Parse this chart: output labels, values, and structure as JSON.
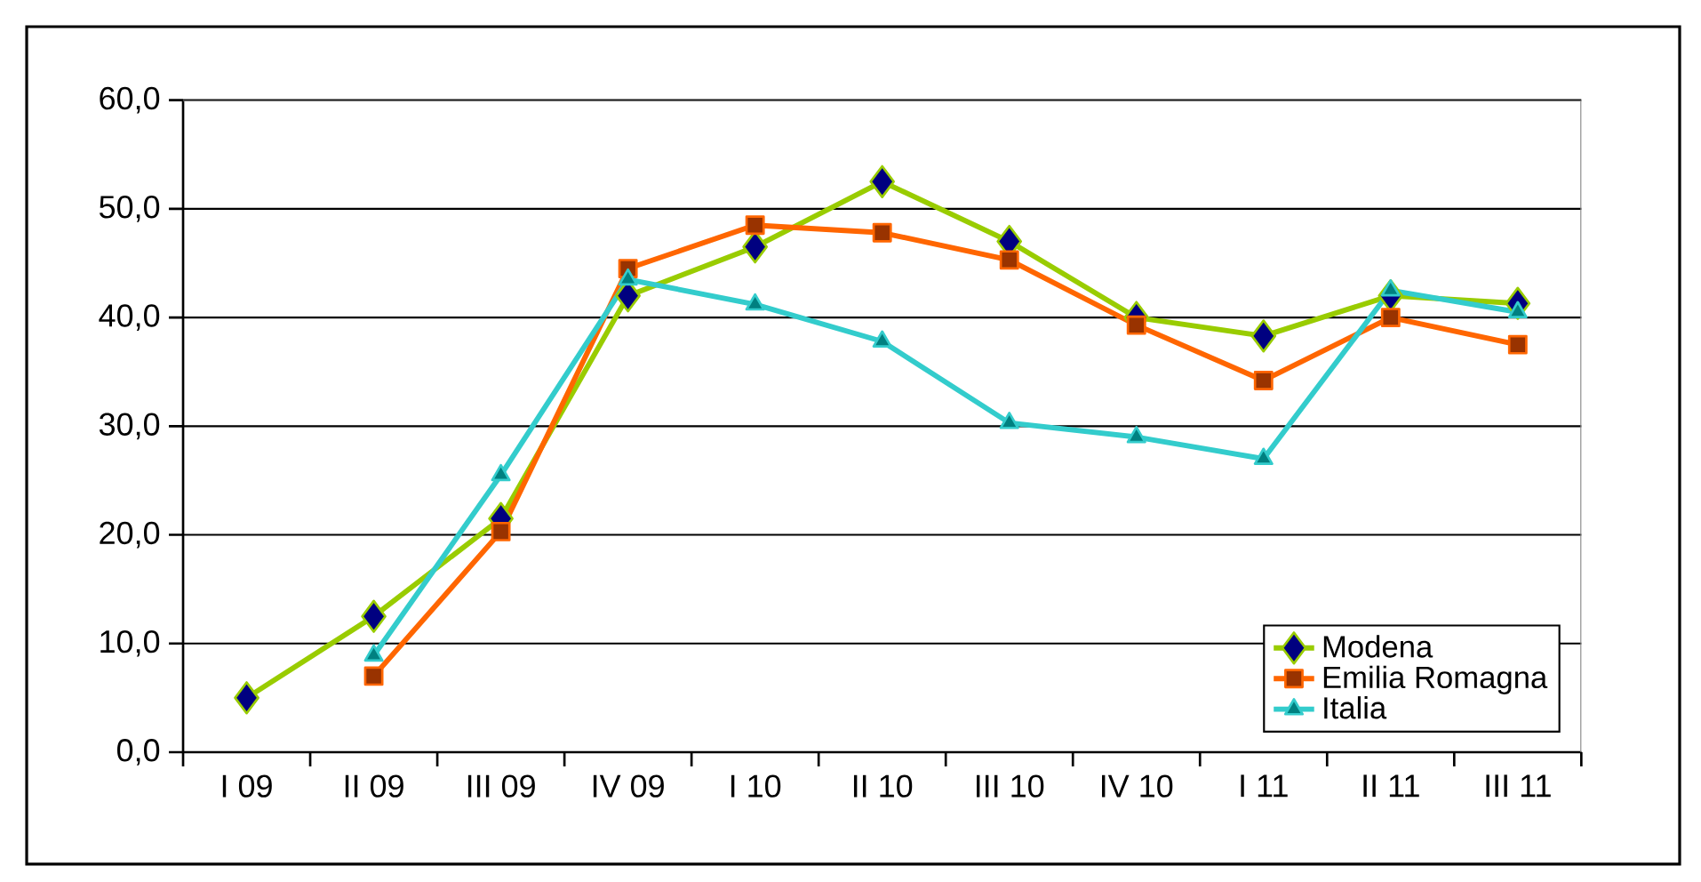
{
  "chart_data": {
    "type": "line",
    "categories": [
      "I 09",
      "II 09",
      "III 09",
      "IV 09",
      "I 10",
      "II 10",
      "III 10",
      "IV 10",
      "I 11",
      "II 11",
      "III 11"
    ],
    "series": [
      {
        "name": "Modena",
        "color": "#99cc00",
        "marker": "diamond",
        "values": [
          5.0,
          12.5,
          21.5,
          42.0,
          46.5,
          52.5,
          47.0,
          40.0,
          38.3,
          42.0,
          41.3
        ]
      },
      {
        "name": "Emilia Romagna",
        "color": "#ff6600",
        "marker": "square",
        "values": [
          null,
          7.0,
          20.3,
          44.5,
          48.5,
          47.8,
          45.3,
          39.3,
          34.2,
          40.0,
          37.5
        ]
      },
      {
        "name": "Italia",
        "color": "#33cccc",
        "marker": "triangle",
        "values": [
          null,
          8.9,
          25.5,
          43.5,
          41.2,
          37.8,
          30.3,
          29.0,
          27.0,
          42.5,
          40.5
        ]
      }
    ],
    "ylim": [
      0,
      60
    ],
    "yticks": [
      {
        "value": 0,
        "label": "0,0"
      },
      {
        "value": 10,
        "label": "10,0"
      },
      {
        "value": 20,
        "label": "20,0"
      },
      {
        "value": 30,
        "label": "30,0"
      },
      {
        "value": 40,
        "label": "40,0"
      },
      {
        "value": 50,
        "label": "50,0"
      },
      {
        "value": 60,
        "label": "60,0"
      }
    ],
    "grid": "y",
    "legend": "bottom right",
    "line_style": "solid"
  }
}
